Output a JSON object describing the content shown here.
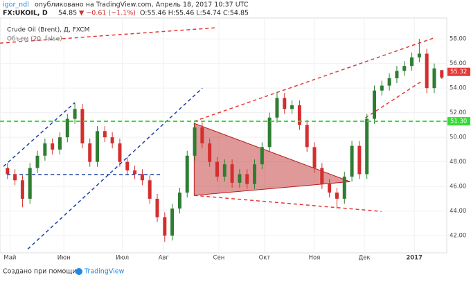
{
  "header": {
    "author": "igor_ndl",
    "published": "опубликовано на TradingView.com, Апрель 18, 2017 10:37 UTC",
    "symbol": "FX:UKOIL, D",
    "last": "54.85",
    "change": "▼ −0.61 (−1.1%)",
    "ohlc": "O:55.46 H:55.46 L:54.74 C:54.85"
  },
  "footer": {
    "made_with": "Создано при помощи",
    "brand": "TradingView"
  },
  "chart_data": {
    "type": "candlestick",
    "title": "Crude Oil (Brent), Д, FXCM",
    "indicator": "Объем (20, false)",
    "up_color": "#2e7d32",
    "down_color": "#d32f2f",
    "x": [
      0,
      3,
      6,
      9,
      12,
      15,
      18,
      21,
      24,
      27,
      30,
      33,
      36,
      39,
      42,
      45,
      48,
      51,
      54,
      57,
      60,
      63,
      66,
      69,
      72,
      75,
      78,
      81,
      84,
      87,
      90,
      93,
      96,
      99,
      102,
      105,
      108,
      111,
      114,
      117,
      120,
      123,
      126,
      129,
      132,
      135,
      138,
      141,
      144,
      147,
      150,
      153,
      156,
      159,
      162,
      165,
      168,
      171,
      174
    ],
    "open": [
      47.5,
      47.0,
      46.5,
      45.0,
      47.5,
      48.5,
      49.5,
      49.0,
      50.0,
      51.5,
      52.3,
      49.5,
      48.0,
      50.5,
      50.0,
      49.5,
      48.0,
      47.3,
      47.0,
      46.5,
      45.0,
      43.5,
      42.0,
      44.2,
      45.5,
      48.5,
      50.8,
      49.5,
      48.0,
      46.8,
      47.8,
      46.3,
      47.0,
      46.2,
      47.8,
      49.2,
      51.6,
      53.2,
      52.3,
      52.6,
      51.0,
      49.2,
      47.5,
      46.2,
      45.5,
      45.0,
      46.8,
      49.3,
      47.0,
      51.5,
      53.8,
      54.2,
      54.8,
      55.4,
      55.8,
      56.5,
      56.8,
      54.0,
      55.46
    ],
    "high": [
      47.9,
      47.4,
      46.9,
      47.9,
      48.9,
      49.9,
      49.9,
      50.4,
      51.9,
      52.8,
      52.7,
      49.9,
      50.9,
      50.9,
      50.4,
      49.9,
      48.4,
      47.7,
      47.4,
      46.9,
      45.4,
      43.9,
      44.6,
      45.9,
      48.9,
      51.2,
      51.2,
      49.9,
      48.4,
      48.2,
      48.2,
      47.4,
      47.4,
      48.2,
      49.6,
      52.0,
      53.7,
      53.6,
      53.0,
      53.0,
      51.4,
      49.6,
      47.9,
      46.6,
      45.9,
      47.2,
      49.7,
      49.7,
      51.9,
      54.2,
      54.6,
      55.2,
      55.8,
      56.2,
      56.9,
      58.0,
      57.2,
      56.0,
      55.46
    ],
    "low": [
      46.6,
      46.1,
      44.3,
      44.6,
      47.1,
      48.1,
      48.6,
      48.6,
      49.6,
      51.1,
      49.1,
      47.6,
      47.6,
      49.6,
      49.1,
      47.6,
      46.9,
      46.6,
      46.1,
      44.6,
      43.1,
      41.5,
      41.6,
      43.8,
      45.1,
      48.1,
      49.1,
      47.6,
      46.4,
      46.4,
      45.9,
      45.9,
      45.8,
      45.8,
      47.4,
      48.8,
      51.2,
      51.9,
      51.9,
      50.6,
      48.8,
      47.1,
      45.8,
      45.1,
      44.2,
      44.6,
      46.4,
      46.6,
      46.6,
      51.1,
      53.4,
      53.8,
      54.4,
      55.0,
      55.4,
      56.1,
      53.6,
      53.6,
      54.74
    ],
    "close": [
      47.0,
      46.5,
      45.0,
      47.5,
      48.5,
      49.5,
      49.0,
      50.0,
      51.5,
      52.3,
      49.5,
      48.0,
      50.5,
      50.0,
      49.5,
      48.0,
      47.3,
      47.0,
      46.5,
      45.0,
      43.5,
      42.0,
      44.2,
      45.5,
      48.5,
      50.8,
      49.5,
      48.0,
      46.8,
      47.8,
      46.3,
      47.0,
      46.2,
      47.8,
      49.2,
      51.6,
      53.2,
      52.3,
      52.6,
      51.0,
      49.2,
      47.5,
      46.2,
      45.5,
      45.0,
      46.8,
      49.3,
      47.0,
      51.5,
      53.8,
      54.2,
      54.8,
      55.4,
      55.8,
      56.5,
      56.8,
      54.0,
      55.6,
      54.85
    ],
    "xlim": [
      -3,
      176
    ],
    "ylim": [
      40.6,
      59.7
    ],
    "xticks": [
      {
        "value": 1,
        "label": "Май"
      },
      {
        "value": 22.6,
        "label": "Июн"
      },
      {
        "value": 46,
        "label": "Июл"
      },
      {
        "value": 62.6,
        "label": "Авг"
      },
      {
        "value": 84.7,
        "label": "Сен"
      },
      {
        "value": 103,
        "label": "Окт"
      },
      {
        "value": 123,
        "label": "Ноя"
      },
      {
        "value": 143,
        "label": "Дек"
      },
      {
        "value": 163,
        "label": "2017"
      }
    ],
    "yticks": [
      {
        "value": 42,
        "label": "42.00"
      },
      {
        "value": 44,
        "label": "44.00"
      },
      {
        "value": 46,
        "label": "46.00"
      },
      {
        "value": 48,
        "label": "48.00"
      },
      {
        "value": 50,
        "label": "50.00"
      },
      {
        "value": 52,
        "label": "52.00"
      },
      {
        "value": 54,
        "label": "54.00"
      },
      {
        "value": 56,
        "label": "56.00"
      },
      {
        "value": 58,
        "label": "58.00"
      }
    ],
    "drawings": [
      {
        "kind": "line",
        "color": "#e53935",
        "x": [
          -3,
          83.1
        ],
        "y": [
          57.66,
          58.9
        ]
      },
      {
        "kind": "line",
        "color": "#1a3fa8",
        "x": [
          -1.6,
          27
        ],
        "y": [
          47.63,
          52.82
        ]
      },
      {
        "kind": "line",
        "color": "#1a3fa8",
        "x": [
          8.1,
          78.1
        ],
        "y": [
          40.9,
          54.0
        ]
      },
      {
        "kind": "line",
        "color": "#1a3fa8",
        "x": [
          -0.2,
          61.4
        ],
        "y": [
          46.96,
          46.96
        ]
      },
      {
        "kind": "line",
        "color": "#e53935",
        "x": [
          74.8,
          170.6
        ],
        "y": [
          51.3,
          58.06
        ]
      },
      {
        "kind": "line",
        "color": "#e53935",
        "x": [
          74.8,
          149.8
        ],
        "y": [
          45.27,
          43.97
        ]
      },
      {
        "kind": "line",
        "color": "#e53935",
        "x": [
          143.4,
          165.6
        ],
        "y": [
          51.58,
          54.51
        ]
      },
      {
        "kind": "triangle",
        "color": "#b71c1c",
        "x": [
          74.8,
          74.8,
          137.3
        ],
        "y": [
          51.13,
          45.27,
          46.39
        ]
      }
    ],
    "levels": [
      {
        "value": 51.3,
        "label": "51.30",
        "color": "#33dd33",
        "dash": true
      },
      {
        "value": 55.32,
        "label": "55.32",
        "color": "#e53935",
        "dash": false
      }
    ]
  }
}
